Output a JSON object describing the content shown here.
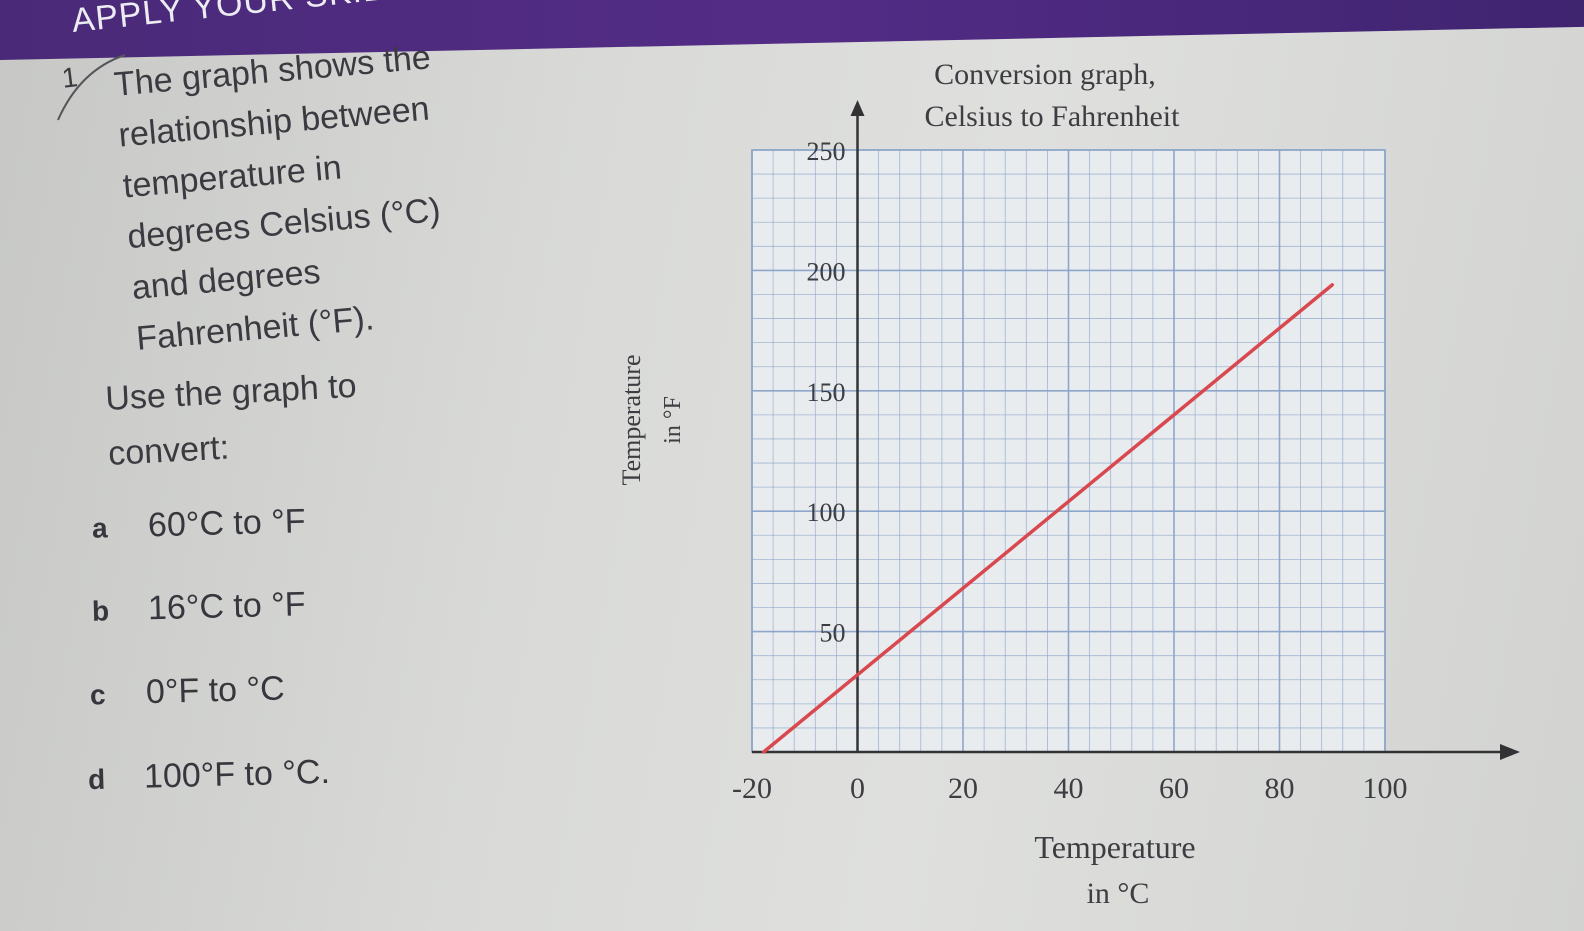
{
  "banner": {
    "title": "APPLY YOUR SKILLS"
  },
  "question": {
    "number": "1",
    "intro_lines": [
      "The graph shows the",
      "relationship between",
      "temperature in",
      "degrees Celsius (°C)",
      "and degrees",
      "Fahrenheit (°F)."
    ],
    "instruction_lines": [
      "Use the graph to",
      "convert:"
    ],
    "parts": [
      {
        "letter": "a",
        "text": "60°C to °F"
      },
      {
        "letter": "b",
        "text": "16°C to °F"
      },
      {
        "letter": "c",
        "text": "0°F to °C"
      },
      {
        "letter": "d",
        "text": "100°F to °C."
      }
    ]
  },
  "colors": {
    "banner": "#522c84",
    "line": "#d9484f",
    "grid": "#8aa3c8",
    "axis": "#333336"
  },
  "chart_data": {
    "type": "line",
    "title": [
      "Conversion graph,",
      "Celsius to Fahrenheit"
    ],
    "xlabel": [
      "Temperature",
      "in °C"
    ],
    "ylabel": [
      "Temperature",
      "in °F"
    ],
    "x_ticks": [
      -20,
      0,
      20,
      40,
      60,
      80,
      100
    ],
    "x_tick_labels": [
      "-20",
      "0",
      "20",
      "40",
      "60",
      "80",
      "100"
    ],
    "y_ticks": [
      50,
      100,
      150,
      200,
      250
    ],
    "y_tick_labels": [
      "50",
      "100",
      "150",
      "200",
      "250"
    ],
    "xlim": [
      -20,
      100
    ],
    "ylim": [
      0,
      250
    ],
    "grid": true,
    "series": [
      {
        "x": [
          -17.8,
          90
        ],
        "y": [
          0,
          194
        ]
      }
    ]
  }
}
